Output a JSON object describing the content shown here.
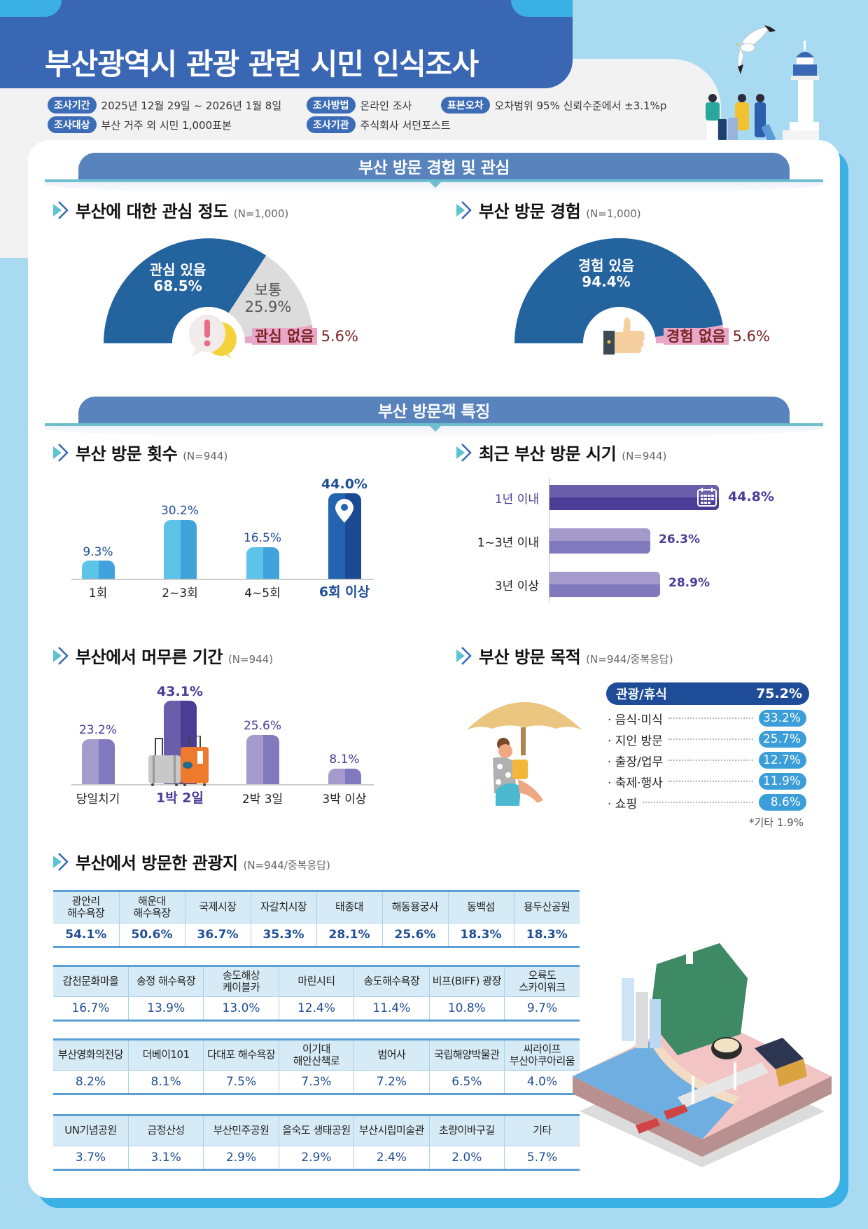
{
  "header": {
    "title": "부산광역시 관광 관련 시민 인식조사",
    "info": [
      {
        "label": "조사기간",
        "value": "2025년 12월 29일 ~ 2026년 1월 8일"
      },
      {
        "label": "조사방법",
        "value": "온라인 조사"
      },
      {
        "label": "표본오차",
        "value": "오차범위 95% 신뢰수준에서 ±3.1%p"
      },
      {
        "label": "조사대상",
        "value": "부산 거주 외 시민 1,000표본"
      },
      {
        "label": "조사기관",
        "value": "주식회사 서던포스트"
      }
    ]
  },
  "sections": {
    "s1": "부산 방문 경험 및 관심",
    "s2": "부산 방문객 특징"
  },
  "interest": {
    "title": "부산에 대한 관심 정도",
    "n": "(N=1,000)",
    "items": [
      {
        "label": "관심 있음",
        "value": "68.5%"
      },
      {
        "label": "보통",
        "value": "25.9%"
      },
      {
        "label": "관심 없음",
        "value": "5.6%"
      }
    ]
  },
  "experience": {
    "title": "부산 방문 경험",
    "n": "(N=1,000)",
    "items": [
      {
        "label": "경험 있음",
        "value": "94.4%"
      },
      {
        "label": "경험 없음",
        "value": "5.6%"
      }
    ]
  },
  "visits": {
    "title": "부산 방문 횟수",
    "n": "(N=944)",
    "items": [
      {
        "label": "1회",
        "value": "9.3%"
      },
      {
        "label": "2~3회",
        "value": "30.2%"
      },
      {
        "label": "4~5회",
        "value": "16.5%"
      },
      {
        "label": "6회 이상",
        "value": "44.0%"
      }
    ]
  },
  "recent": {
    "title": "최근 부산 방문 시기",
    "n": "(N=944)",
    "items": [
      {
        "label": "1년 이내",
        "value": "44.8%"
      },
      {
        "label": "1~3년 이내",
        "value": "26.3%"
      },
      {
        "label": "3년 이상",
        "value": "28.9%"
      }
    ]
  },
  "stay": {
    "title": "부산에서 머무른 기간",
    "n": "(N=944)",
    "items": [
      {
        "label": "당일치기",
        "value": "23.2%"
      },
      {
        "label": "1박 2일",
        "value": "43.1%"
      },
      {
        "label": "2박 3일",
        "value": "25.6%"
      },
      {
        "label": "3박 이상",
        "value": "8.1%"
      }
    ]
  },
  "purpose": {
    "title": "부산 방문 목적",
    "n": "(N=944/중복응답)",
    "top": {
      "label": "관광/휴식",
      "value": "75.2%"
    },
    "items": [
      {
        "label": "· 음식·미식",
        "value": "33.2%"
      },
      {
        "label": "· 지인 방문",
        "value": "25.7%"
      },
      {
        "label": "· 출장/업무",
        "value": "12.7%"
      },
      {
        "label": "· 축제·행사",
        "value": "11.9%"
      },
      {
        "label": "· 쇼핑",
        "value": "8.6%"
      }
    ],
    "note": "*기타 1.9%"
  },
  "spots": {
    "title": "부산에서 방문한 관광지",
    "n": "(N=944/중복응답)",
    "table1": [
      {
        "label": "광안리\n해수욕장",
        "value": "54.1%"
      },
      {
        "label": "해운대\n해수욕장",
        "value": "50.6%"
      },
      {
        "label": "국제시장",
        "value": "36.7%"
      },
      {
        "label": "자갈치시장",
        "value": "35.3%"
      },
      {
        "label": "태종대",
        "value": "28.1%"
      },
      {
        "label": "해동용궁사",
        "value": "25.6%"
      },
      {
        "label": "동백섬",
        "value": "18.3%"
      },
      {
        "label": "용두산공원",
        "value": "18.3%"
      }
    ],
    "table2": [
      {
        "label": "감천문화마을",
        "value": "16.7%"
      },
      {
        "label": "송정 해수욕장",
        "value": "13.9%"
      },
      {
        "label": "송도해상\n케이블카",
        "value": "13.0%"
      },
      {
        "label": "마린시티",
        "value": "12.4%"
      },
      {
        "label": "송도해수욕장",
        "value": "11.4%"
      },
      {
        "label": "비프(BIFF) 광장",
        "value": "10.8%"
      },
      {
        "label": "오륙도\n스카이워크",
        "value": "9.7%"
      }
    ],
    "table3": [
      {
        "label": "부산영화의전당",
        "value": "8.2%"
      },
      {
        "label": "더베이101",
        "value": "8.1%"
      },
      {
        "label": "다대포 해수욕장",
        "value": "7.5%"
      },
      {
        "label": "이기대\n해안산책로",
        "value": "7.3%"
      },
      {
        "label": "범어사",
        "value": "7.2%"
      },
      {
        "label": "국립해양박물관",
        "value": "6.5%"
      },
      {
        "label": "씨라이프\n부산아쿠아리움",
        "value": "4.0%"
      }
    ],
    "table4": [
      {
        "label": "UN기념공원",
        "value": "3.7%"
      },
      {
        "label": "금정산성",
        "value": "3.1%"
      },
      {
        "label": "부산민주공원",
        "value": "2.9%"
      },
      {
        "label": "을숙도 생태공원",
        "value": "2.9%"
      },
      {
        "label": "부산시립미술관",
        "value": "2.4%"
      },
      {
        "label": "초량이바구길",
        "value": "2.0%"
      },
      {
        "label": "기타",
        "value": "5.7%"
      }
    ]
  },
  "colors": {
    "title_band": "#3a67b3",
    "banner": "#5883bd",
    "donut_main": "#23639e",
    "donut_neutral": "#dcdcdc",
    "donut_negative": "#e9a7c8",
    "bar_light": "#5ec3e8",
    "bar_dark": "#2463b0",
    "purple_dark": "#4b3c96",
    "purple_light": "#a49bcc",
    "table_border": "#5aa0d6",
    "page_bg": "#a8dbf1"
  },
  "chart_data": [
    {
      "type": "pie",
      "title": "부산에 대한 관심 정도 (N=1,000)",
      "variant": "half-donut",
      "categories": [
        "관심 있음",
        "보통",
        "관심 없음"
      ],
      "values": [
        68.5,
        25.9,
        5.6
      ]
    },
    {
      "type": "pie",
      "title": "부산 방문 경험 (N=1,000)",
      "variant": "half-donut",
      "categories": [
        "경험 있음",
        "경험 없음"
      ],
      "values": [
        94.4,
        5.6
      ]
    },
    {
      "type": "bar",
      "title": "부산 방문 횟수 (N=944)",
      "categories": [
        "1회",
        "2~3회",
        "4~5회",
        "6회 이상"
      ],
      "values": [
        9.3,
        30.2,
        16.5,
        44.0
      ],
      "ylabel": "%",
      "grid": false
    },
    {
      "type": "bar",
      "orientation": "horizontal",
      "title": "최근 부산 방문 시기 (N=944)",
      "categories": [
        "1년 이내",
        "1~3년 이내",
        "3년 이상"
      ],
      "values": [
        44.8,
        26.3,
        28.9
      ],
      "grid": false
    },
    {
      "type": "bar",
      "title": "부산에서 머무른 기간 (N=944)",
      "categories": [
        "당일치기",
        "1박 2일",
        "2박 3일",
        "3박 이상"
      ],
      "values": [
        23.2,
        43.1,
        25.6,
        8.1
      ],
      "grid": false
    },
    {
      "type": "table",
      "title": "부산 방문 목적 (N=944/중복응답)",
      "categories": [
        "관광/휴식",
        "음식·미식",
        "지인 방문",
        "출장/업무",
        "축제·행사",
        "쇼핑",
        "기타"
      ],
      "values": [
        75.2,
        33.2,
        25.7,
        12.7,
        11.9,
        8.6,
        1.9
      ]
    },
    {
      "type": "table",
      "title": "부산에서 방문한 관광지 (N=944/중복응답)",
      "categories": [
        "광안리 해수욕장",
        "해운대 해수욕장",
        "국제시장",
        "자갈치시장",
        "태종대",
        "해동용궁사",
        "동백섬",
        "용두산공원",
        "감천문화마을",
        "송정 해수욕장",
        "송도해상 케이블카",
        "마린시티",
        "송도해수욕장",
        "비프(BIFF) 광장",
        "오륙도 스카이워크",
        "부산영화의전당",
        "더베이101",
        "다대포 해수욕장",
        "이기대 해안산책로",
        "범어사",
        "국립해양박물관",
        "씨라이프 부산아쿠아리움",
        "UN기념공원",
        "금정산성",
        "부산민주공원",
        "을숙도 생태공원",
        "부산시립미술관",
        "초량이바구길",
        "기타"
      ],
      "values": [
        54.1,
        50.6,
        36.7,
        35.3,
        28.1,
        25.6,
        18.3,
        18.3,
        16.7,
        13.9,
        13.0,
        12.4,
        11.4,
        10.8,
        9.7,
        8.2,
        8.1,
        7.5,
        7.3,
        7.2,
        6.5,
        4.0,
        3.7,
        3.1,
        2.9,
        2.9,
        2.4,
        2.0,
        5.7
      ]
    }
  ]
}
